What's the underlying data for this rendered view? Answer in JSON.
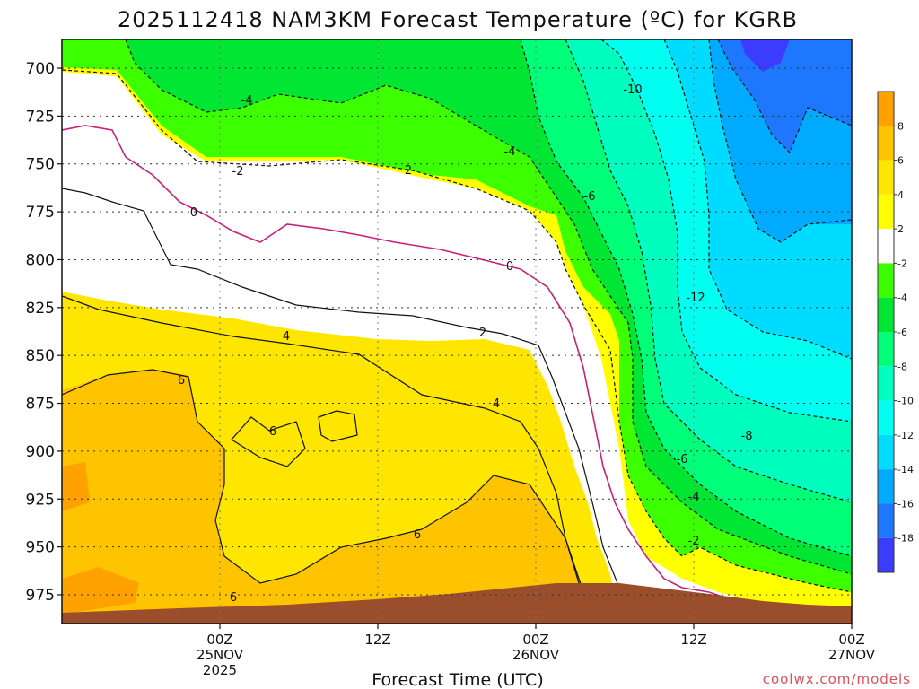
{
  "chart_data": {
    "type": "heatmap",
    "title": "2025112418 NAM3KM Forecast Temperature (ºC) for KGRB",
    "xlabel": "Forecast Time (UTC)",
    "ylabel": "",
    "credit": "coolwx.com/models",
    "y_axis": {
      "label": "",
      "min": 685,
      "max": 990,
      "inverted": true,
      "ticks": [
        "700",
        "725",
        "750",
        "775",
        "800",
        "825",
        "850",
        "875",
        "900",
        "925",
        "950",
        "975"
      ]
    },
    "x_axis": {
      "min_hours": -15,
      "max_hours": 60,
      "ticks": [
        {
          "hours": 0,
          "lines": [
            "00Z",
            "25NOV",
            "2025"
          ]
        },
        {
          "hours": 15,
          "lines": [
            "12Z"
          ]
        },
        {
          "hours": 30,
          "lines": [
            "00Z",
            "26NOV"
          ]
        },
        {
          "hours": 45,
          "lines": [
            "12Z"
          ]
        },
        {
          "hours": 60,
          "lines": [
            "00Z",
            "27NOV"
          ]
        }
      ]
    },
    "colorbar": {
      "labels": [
        "8",
        "6",
        "4",
        "2",
        "-2",
        "-4",
        "-6",
        "-8",
        "-10",
        "-12",
        "-14",
        "-16",
        "-18"
      ],
      "colors": [
        "#ffa200",
        "#ffc400",
        "#ffe600",
        "#ffff00",
        "#ffffff",
        "#3cff00",
        "#00e632",
        "#00ff78",
        "#00ffbe",
        "#00fff0",
        "#00dcff",
        "#00aaff",
        "#1e78ff",
        "#3c3cff"
      ]
    },
    "contour_labels": [
      "-4",
      "-2",
      "0",
      "-10",
      "-4",
      "-6",
      "2",
      "0",
      "-12",
      "4",
      "2",
      "6",
      "4",
      "6",
      "-8",
      "-6",
      "6",
      "-4",
      "-2",
      "6"
    ],
    "surface_color": "#9a4e2c"
  }
}
